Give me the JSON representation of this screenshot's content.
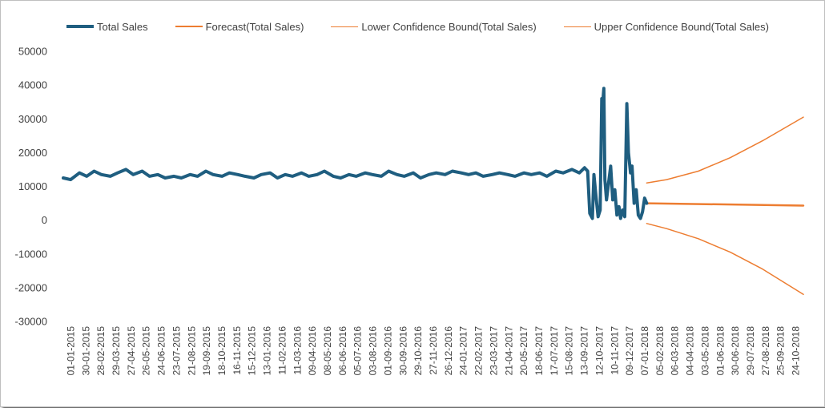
{
  "chart_data": {
    "type": "line",
    "title": "",
    "xlabel": "",
    "ylabel": "",
    "ylim": [
      -30000,
      50000
    ],
    "yticks": [
      50000,
      40000,
      30000,
      20000,
      10000,
      0,
      -10000,
      -20000,
      -30000
    ],
    "x_range": [
      "01-01-2015",
      "18-11-2018"
    ],
    "x_tick_labels": [
      "01-01-2015",
      "30-01-2015",
      "28-02-2015",
      "29-03-2015",
      "27-04-2015",
      "26-05-2015",
      "24-06-2015",
      "23-07-2015",
      "21-08-2015",
      "19-09-2015",
      "18-10-2015",
      "16-11-2015",
      "15-12-2015",
      "13-01-2016",
      "11-02-2016",
      "11-03-2016",
      "09-04-2016",
      "08-05-2016",
      "06-06-2016",
      "05-07-2016",
      "03-08-2016",
      "01-09-2016",
      "30-09-2016",
      "29-10-2016",
      "27-11-2016",
      "26-12-2016",
      "24-01-2017",
      "22-02-2017",
      "23-03-2017",
      "21-04-2017",
      "20-05-2017",
      "18-06-2017",
      "17-07-2017",
      "15-08-2017",
      "13-09-2017",
      "12-10-2017",
      "10-11-2017",
      "09-12-2017",
      "07-01-2018",
      "05-02-2018",
      "06-03-2018",
      "04-04-2018",
      "03-05-2018",
      "01-06-2018",
      "30-06-2018",
      "29-07-2018",
      "27-08-2018",
      "25-09-2018",
      "24-10-2018"
    ],
    "grid": false,
    "legend": "top",
    "series": [
      {
        "name": "Total Sales",
        "color": "#1f5e80",
        "width": 4,
        "points": [
          [
            "01-01-2015",
            12500
          ],
          [
            "15-01-2015",
            12000
          ],
          [
            "01-02-2015",
            14000
          ],
          [
            "15-02-2015",
            13000
          ],
          [
            "01-03-2015",
            14500
          ],
          [
            "15-03-2015",
            13500
          ],
          [
            "01-04-2015",
            13000
          ],
          [
            "15-04-2015",
            14000
          ],
          [
            "01-05-2015",
            15000
          ],
          [
            "15-05-2015",
            13500
          ],
          [
            "01-06-2015",
            14500
          ],
          [
            "15-06-2015",
            13000
          ],
          [
            "01-07-2015",
            13500
          ],
          [
            "15-07-2015",
            12500
          ],
          [
            "01-08-2015",
            13000
          ],
          [
            "15-08-2015",
            12500
          ],
          [
            "01-09-2015",
            13500
          ],
          [
            "15-09-2015",
            13000
          ],
          [
            "01-10-2015",
            14500
          ],
          [
            "15-10-2015",
            13500
          ],
          [
            "01-11-2015",
            13000
          ],
          [
            "15-11-2015",
            14000
          ],
          [
            "01-12-2015",
            13500
          ],
          [
            "15-12-2015",
            13000
          ],
          [
            "01-01-2016",
            12500
          ],
          [
            "15-01-2016",
            13500
          ],
          [
            "01-02-2016",
            14000
          ],
          [
            "15-02-2016",
            12500
          ],
          [
            "01-03-2016",
            13500
          ],
          [
            "15-03-2016",
            13000
          ],
          [
            "01-04-2016",
            14000
          ],
          [
            "15-04-2016",
            13000
          ],
          [
            "01-05-2016",
            13500
          ],
          [
            "15-05-2016",
            14500
          ],
          [
            "01-06-2016",
            13000
          ],
          [
            "15-06-2016",
            12500
          ],
          [
            "01-07-2016",
            13500
          ],
          [
            "15-07-2016",
            13000
          ],
          [
            "01-08-2016",
            14000
          ],
          [
            "15-08-2016",
            13500
          ],
          [
            "01-09-2016",
            13000
          ],
          [
            "15-09-2016",
            14500
          ],
          [
            "01-10-2016",
            13500
          ],
          [
            "15-10-2016",
            13000
          ],
          [
            "01-11-2016",
            14000
          ],
          [
            "15-11-2016",
            12500
          ],
          [
            "01-12-2016",
            13500
          ],
          [
            "15-12-2016",
            14000
          ],
          [
            "01-01-2017",
            13500
          ],
          [
            "15-01-2017",
            14500
          ],
          [
            "01-02-2017",
            14000
          ],
          [
            "15-02-2017",
            13500
          ],
          [
            "01-03-2017",
            14000
          ],
          [
            "15-03-2017",
            13000
          ],
          [
            "01-04-2017",
            13500
          ],
          [
            "15-04-2017",
            14000
          ],
          [
            "01-05-2017",
            13500
          ],
          [
            "15-05-2017",
            13000
          ],
          [
            "01-06-2017",
            14000
          ],
          [
            "15-06-2017",
            13500
          ],
          [
            "01-07-2017",
            14000
          ],
          [
            "15-07-2017",
            13000
          ],
          [
            "01-08-2017",
            14500
          ],
          [
            "15-08-2017",
            14000
          ],
          [
            "01-09-2017",
            15000
          ],
          [
            "15-09-2017",
            14000
          ],
          [
            "25-09-2017",
            15500
          ],
          [
            "01-10-2017",
            14500
          ],
          [
            "05-10-2017",
            2000
          ],
          [
            "10-10-2017",
            500
          ],
          [
            "13-10-2017",
            13500
          ],
          [
            "17-10-2017",
            7000
          ],
          [
            "21-10-2017",
            1000
          ],
          [
            "25-10-2017",
            3000
          ],
          [
            "28-10-2017",
            36000
          ],
          [
            "30-10-2017",
            35000
          ],
          [
            "01-11-2017",
            39000
          ],
          [
            "03-11-2017",
            12000
          ],
          [
            "06-11-2017",
            6000
          ],
          [
            "10-11-2017",
            11000
          ],
          [
            "14-11-2017",
            16000
          ],
          [
            "18-11-2017",
            6000
          ],
          [
            "22-11-2017",
            9000
          ],
          [
            "26-11-2017",
            1500
          ],
          [
            "30-11-2017",
            4000
          ],
          [
            "03-12-2017",
            500
          ],
          [
            "07-12-2017",
            3000
          ],
          [
            "11-12-2017",
            1000
          ],
          [
            "15-12-2017",
            34500
          ],
          [
            "18-12-2017",
            20000
          ],
          [
            "22-12-2017",
            14000
          ],
          [
            "25-12-2017",
            16000
          ],
          [
            "29-12-2017",
            5000
          ],
          [
            "02-01-2018",
            9000
          ],
          [
            "06-01-2018",
            1500
          ],
          [
            "10-01-2018",
            500
          ],
          [
            "14-01-2018",
            2500
          ],
          [
            "18-01-2018",
            6500
          ],
          [
            "22-01-2018",
            5000
          ]
        ]
      },
      {
        "name": "Forecast(Total Sales)",
        "color": "#ed7d31",
        "width": 2.5,
        "points": [
          [
            "22-01-2018",
            5000
          ],
          [
            "18-11-2018",
            4300
          ]
        ]
      },
      {
        "name": "Lower Confidence Bound(Total Sales)",
        "color": "#ed7d31",
        "width": 1.5,
        "points": [
          [
            "22-01-2018",
            -1000
          ],
          [
            "01-03-2018",
            -2500
          ],
          [
            "01-05-2018",
            -5500
          ],
          [
            "01-07-2018",
            -9500
          ],
          [
            "01-09-2018",
            -14500
          ],
          [
            "18-11-2018",
            -22000
          ]
        ]
      },
      {
        "name": "Upper Confidence Bound(Total Sales)",
        "color": "#ed7d31",
        "width": 1.5,
        "points": [
          [
            "22-01-2018",
            11000
          ],
          [
            "01-03-2018",
            12000
          ],
          [
            "01-05-2018",
            14500
          ],
          [
            "01-07-2018",
            18500
          ],
          [
            "01-09-2018",
            23500
          ],
          [
            "18-11-2018",
            30500
          ]
        ]
      }
    ]
  }
}
